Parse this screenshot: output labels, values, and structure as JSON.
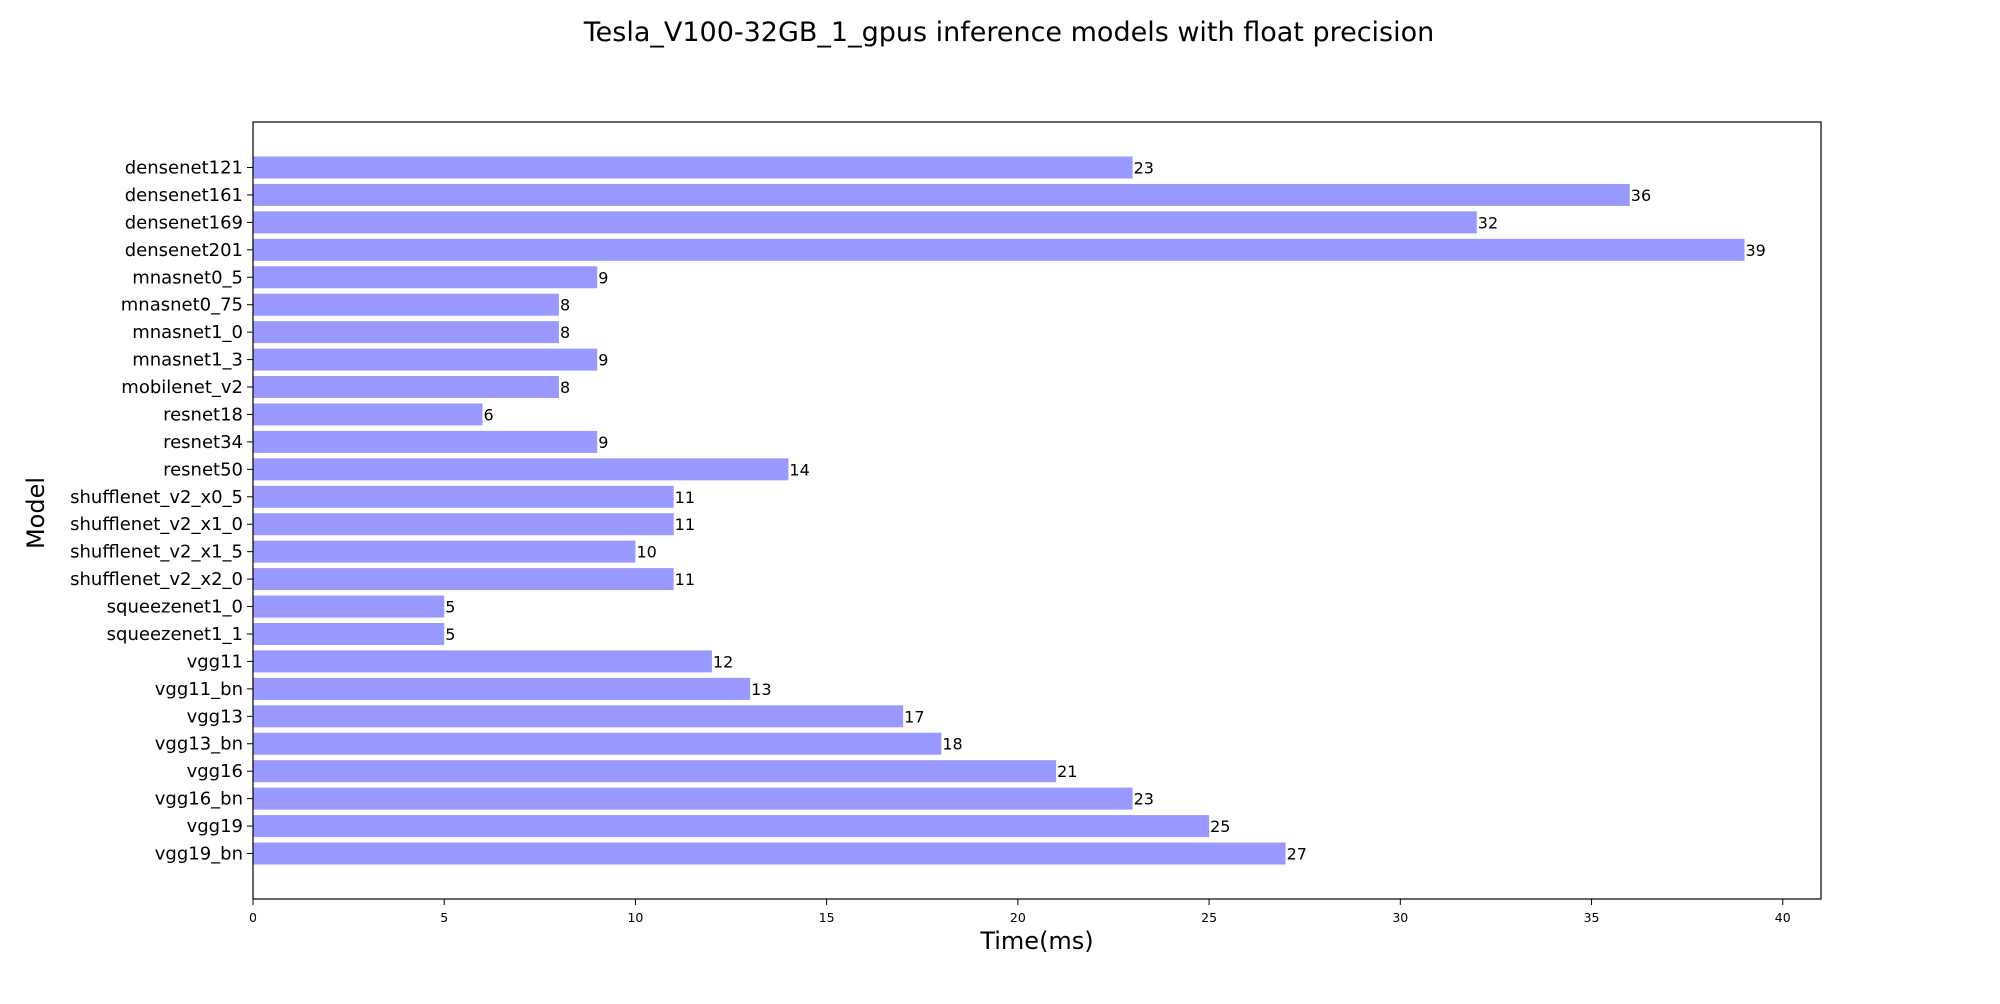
{
  "chart_data": {
    "type": "bar",
    "orientation": "horizontal",
    "title": "Tesla_V100-32GB_1_gpus inference models with float precision",
    "xlabel": "Time(ms)",
    "ylabel": "Model",
    "xlim": [
      0,
      41
    ],
    "xticks": [
      0,
      5,
      10,
      15,
      20,
      25,
      30,
      35,
      40
    ],
    "grid": false,
    "bar_color": "#9999ff",
    "categories": [
      "densenet121",
      "densenet161",
      "densenet169",
      "densenet201",
      "mnasnet0_5",
      "mnasnet0_75",
      "mnasnet1_0",
      "mnasnet1_3",
      "mobilenet_v2",
      "resnet18",
      "resnet34",
      "resnet50",
      "shufflenet_v2_x0_5",
      "shufflenet_v2_x1_0",
      "shufflenet_v2_x1_5",
      "shufflenet_v2_x2_0",
      "squeezenet1_0",
      "squeezenet1_1",
      "vgg11",
      "vgg11_bn",
      "vgg13",
      "vgg13_bn",
      "vgg16",
      "vgg16_bn",
      "vgg19",
      "vgg19_bn"
    ],
    "values": [
      23,
      36,
      32,
      39,
      9,
      8,
      8,
      9,
      8,
      6,
      9,
      14,
      11,
      11,
      10,
      11,
      5,
      5,
      12,
      13,
      17,
      18,
      21,
      23,
      25,
      27
    ]
  }
}
